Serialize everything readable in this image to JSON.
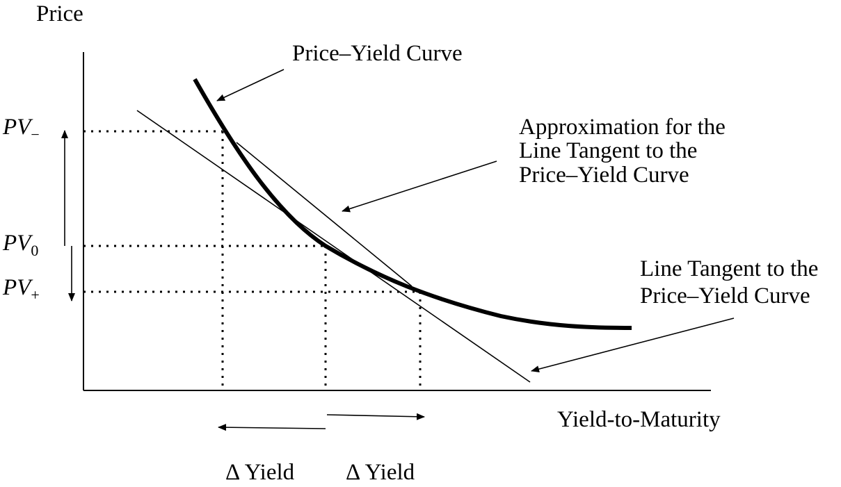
{
  "axes": {
    "y_label": "Price",
    "x_label": "Yield-to-Maturity"
  },
  "pv_labels": {
    "minus": {
      "base": "PV",
      "sub": "−"
    },
    "zero": {
      "base": "PV",
      "sub": "0"
    },
    "plus": {
      "base": "PV",
      "sub": "+"
    }
  },
  "annotations": {
    "curve": "Price–Yield Curve",
    "approx": [
      "Approximation for the",
      "Line Tangent to the",
      "Price–Yield Curve"
    ],
    "tangent": [
      "Line Tangent to the",
      "Price–Yield Curve"
    ]
  },
  "delta_labels": [
    "Δ Yield",
    "Δ Yield"
  ],
  "colors": {
    "ink": "#000000",
    "background": "#ffffff"
  }
}
